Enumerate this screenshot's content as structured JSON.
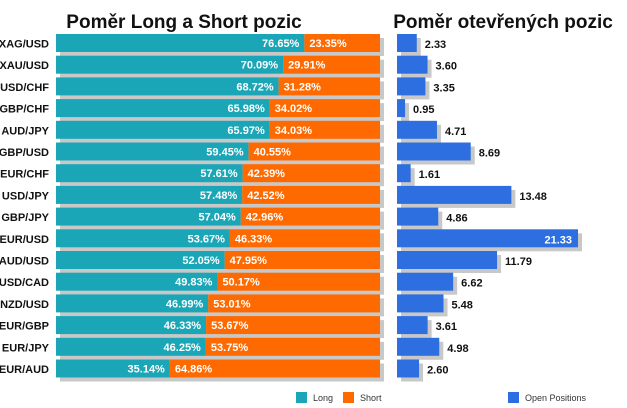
{
  "chart_data": [
    {
      "type": "bar",
      "orientation": "horizontal",
      "stacked": true,
      "title": "Poměr Long a Short pozic",
      "categories": [
        "XAG/USD",
        "XAU/USD",
        "USD/CHF",
        "GBP/CHF",
        "AUD/JPY",
        "GBP/USD",
        "EUR/CHF",
        "USD/JPY",
        "GBP/JPY",
        "EUR/USD",
        "AUD/USD",
        "USD/CAD",
        "NZD/USD",
        "EUR/GBP",
        "EUR/JPY",
        "EUR/AUD"
      ],
      "series": [
        {
          "name": "Long",
          "color": "#1aa6b7",
          "values": [
            76.65,
            70.09,
            68.72,
            65.98,
            65.97,
            59.45,
            57.61,
            57.48,
            57.04,
            53.67,
            52.05,
            49.83,
            46.99,
            46.33,
            46.25,
            35.14
          ],
          "labels": [
            "76.65%",
            "70.09%",
            "68.72%",
            "65.98%",
            "65.97%",
            "59.45%",
            "57.61%",
            "57.48%",
            "57.04%",
            "53.67%",
            "52.05%",
            "49.83%",
            "46.99%",
            "46.33%",
            "46.25%",
            "35.14%"
          ]
        },
        {
          "name": "Short",
          "color": "#ff6a00",
          "values": [
            23.35,
            29.91,
            31.28,
            34.02,
            34.03,
            40.55,
            42.39,
            42.52,
            42.96,
            46.33,
            47.95,
            50.17,
            53.01,
            53.67,
            53.75,
            64.86
          ],
          "labels": [
            "23.35%",
            "29.91%",
            "31.28%",
            "34.02%",
            "34.03%",
            "40.55%",
            "42.39%",
            "42.52%",
            "42.96%",
            "46.33%",
            "47.95%",
            "50.17%",
            "53.01%",
            "53.67%",
            "53.75%",
            "64.86%"
          ]
        }
      ],
      "xlim": [
        0,
        100
      ],
      "legend": "bottom-right"
    },
    {
      "type": "bar",
      "orientation": "horizontal",
      "title": "Poměr otevřených pozic",
      "categories": [
        "XAG/USD",
        "XAU/USD",
        "USD/CHF",
        "GBP/CHF",
        "AUD/JPY",
        "GBP/USD",
        "EUR/CHF",
        "USD/JPY",
        "GBP/JPY",
        "EUR/USD",
        "AUD/USD",
        "USD/CAD",
        "NZD/USD",
        "EUR/GBP",
        "EUR/JPY",
        "EUR/AUD"
      ],
      "series": [
        {
          "name": "Open Positions",
          "color": "#2d6fe0",
          "values": [
            2.33,
            3.6,
            3.35,
            0.95,
            4.71,
            8.69,
            1.61,
            13.48,
            4.86,
            21.33,
            11.79,
            6.62,
            5.48,
            3.61,
            4.98,
            2.6
          ],
          "labels": [
            "2.33",
            "3.60",
            "3.35",
            "0.95",
            "4.71",
            "8.69",
            "1.61",
            "13.48",
            "4.86",
            "21.33",
            "11.79",
            "6.62",
            "5.48",
            "3.61",
            "4.98",
            "2.60"
          ]
        }
      ],
      "xlim": [
        0,
        21.33
      ],
      "legend": "bottom-right"
    }
  ]
}
